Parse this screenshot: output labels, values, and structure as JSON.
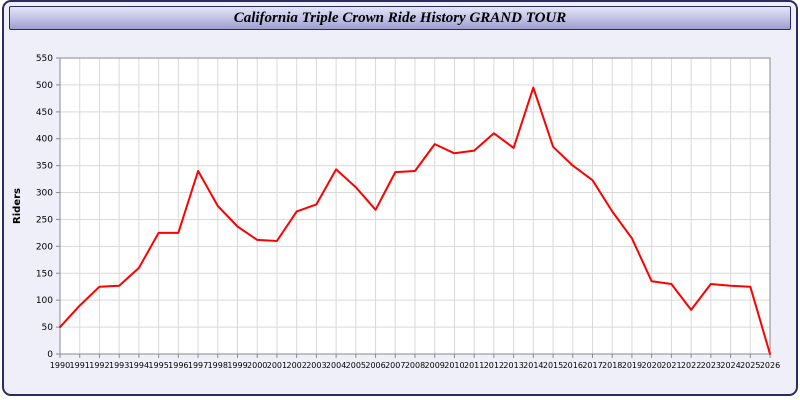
{
  "window": {
    "title": "California Triple Crown Ride History GRAND TOUR"
  },
  "colors": {
    "border-dark": "#2b2b63",
    "page-bg": "#efeffa",
    "header-grad-top": "#e4e4f6",
    "header-grad-bottom": "#9e9ed0",
    "plot-bg": "#ffffff",
    "grid-color": "#d9d9d9",
    "axis-color": "#8a8a8a",
    "line-color": "#ff0000",
    "text-color": "#000000"
  },
  "chart_data": {
    "type": "line",
    "title": "California Triple Crown Ride History GRAND TOUR",
    "xlabel": "",
    "ylabel": "Riders",
    "ylim": [
      0,
      550
    ],
    "ytick_step": 50,
    "grid": true,
    "legend_position": "none",
    "x": [
      1990,
      1991,
      1992,
      1993,
      1994,
      1995,
      1996,
      1997,
      1998,
      1999,
      2000,
      2001,
      2002,
      2003,
      2004,
      2005,
      2006,
      2007,
      2008,
      2009,
      2010,
      2011,
      2012,
      2013,
      2014,
      2015,
      2016,
      2017,
      2018,
      2019,
      2020,
      2021,
      2022,
      2023,
      2024,
      2025,
      2026
    ],
    "series": [
      {
        "name": "Riders",
        "color": "#ff0000",
        "values": [
          50,
          90,
          125,
          127,
          160,
          225,
          225,
          340,
          275,
          237,
          212,
          210,
          265,
          278,
          343,
          310,
          268,
          338,
          340,
          390,
          373,
          378,
          410,
          383,
          495,
          385,
          350,
          323,
          265,
          215,
          135,
          130,
          82,
          130,
          127,
          125,
          0
        ]
      }
    ]
  }
}
